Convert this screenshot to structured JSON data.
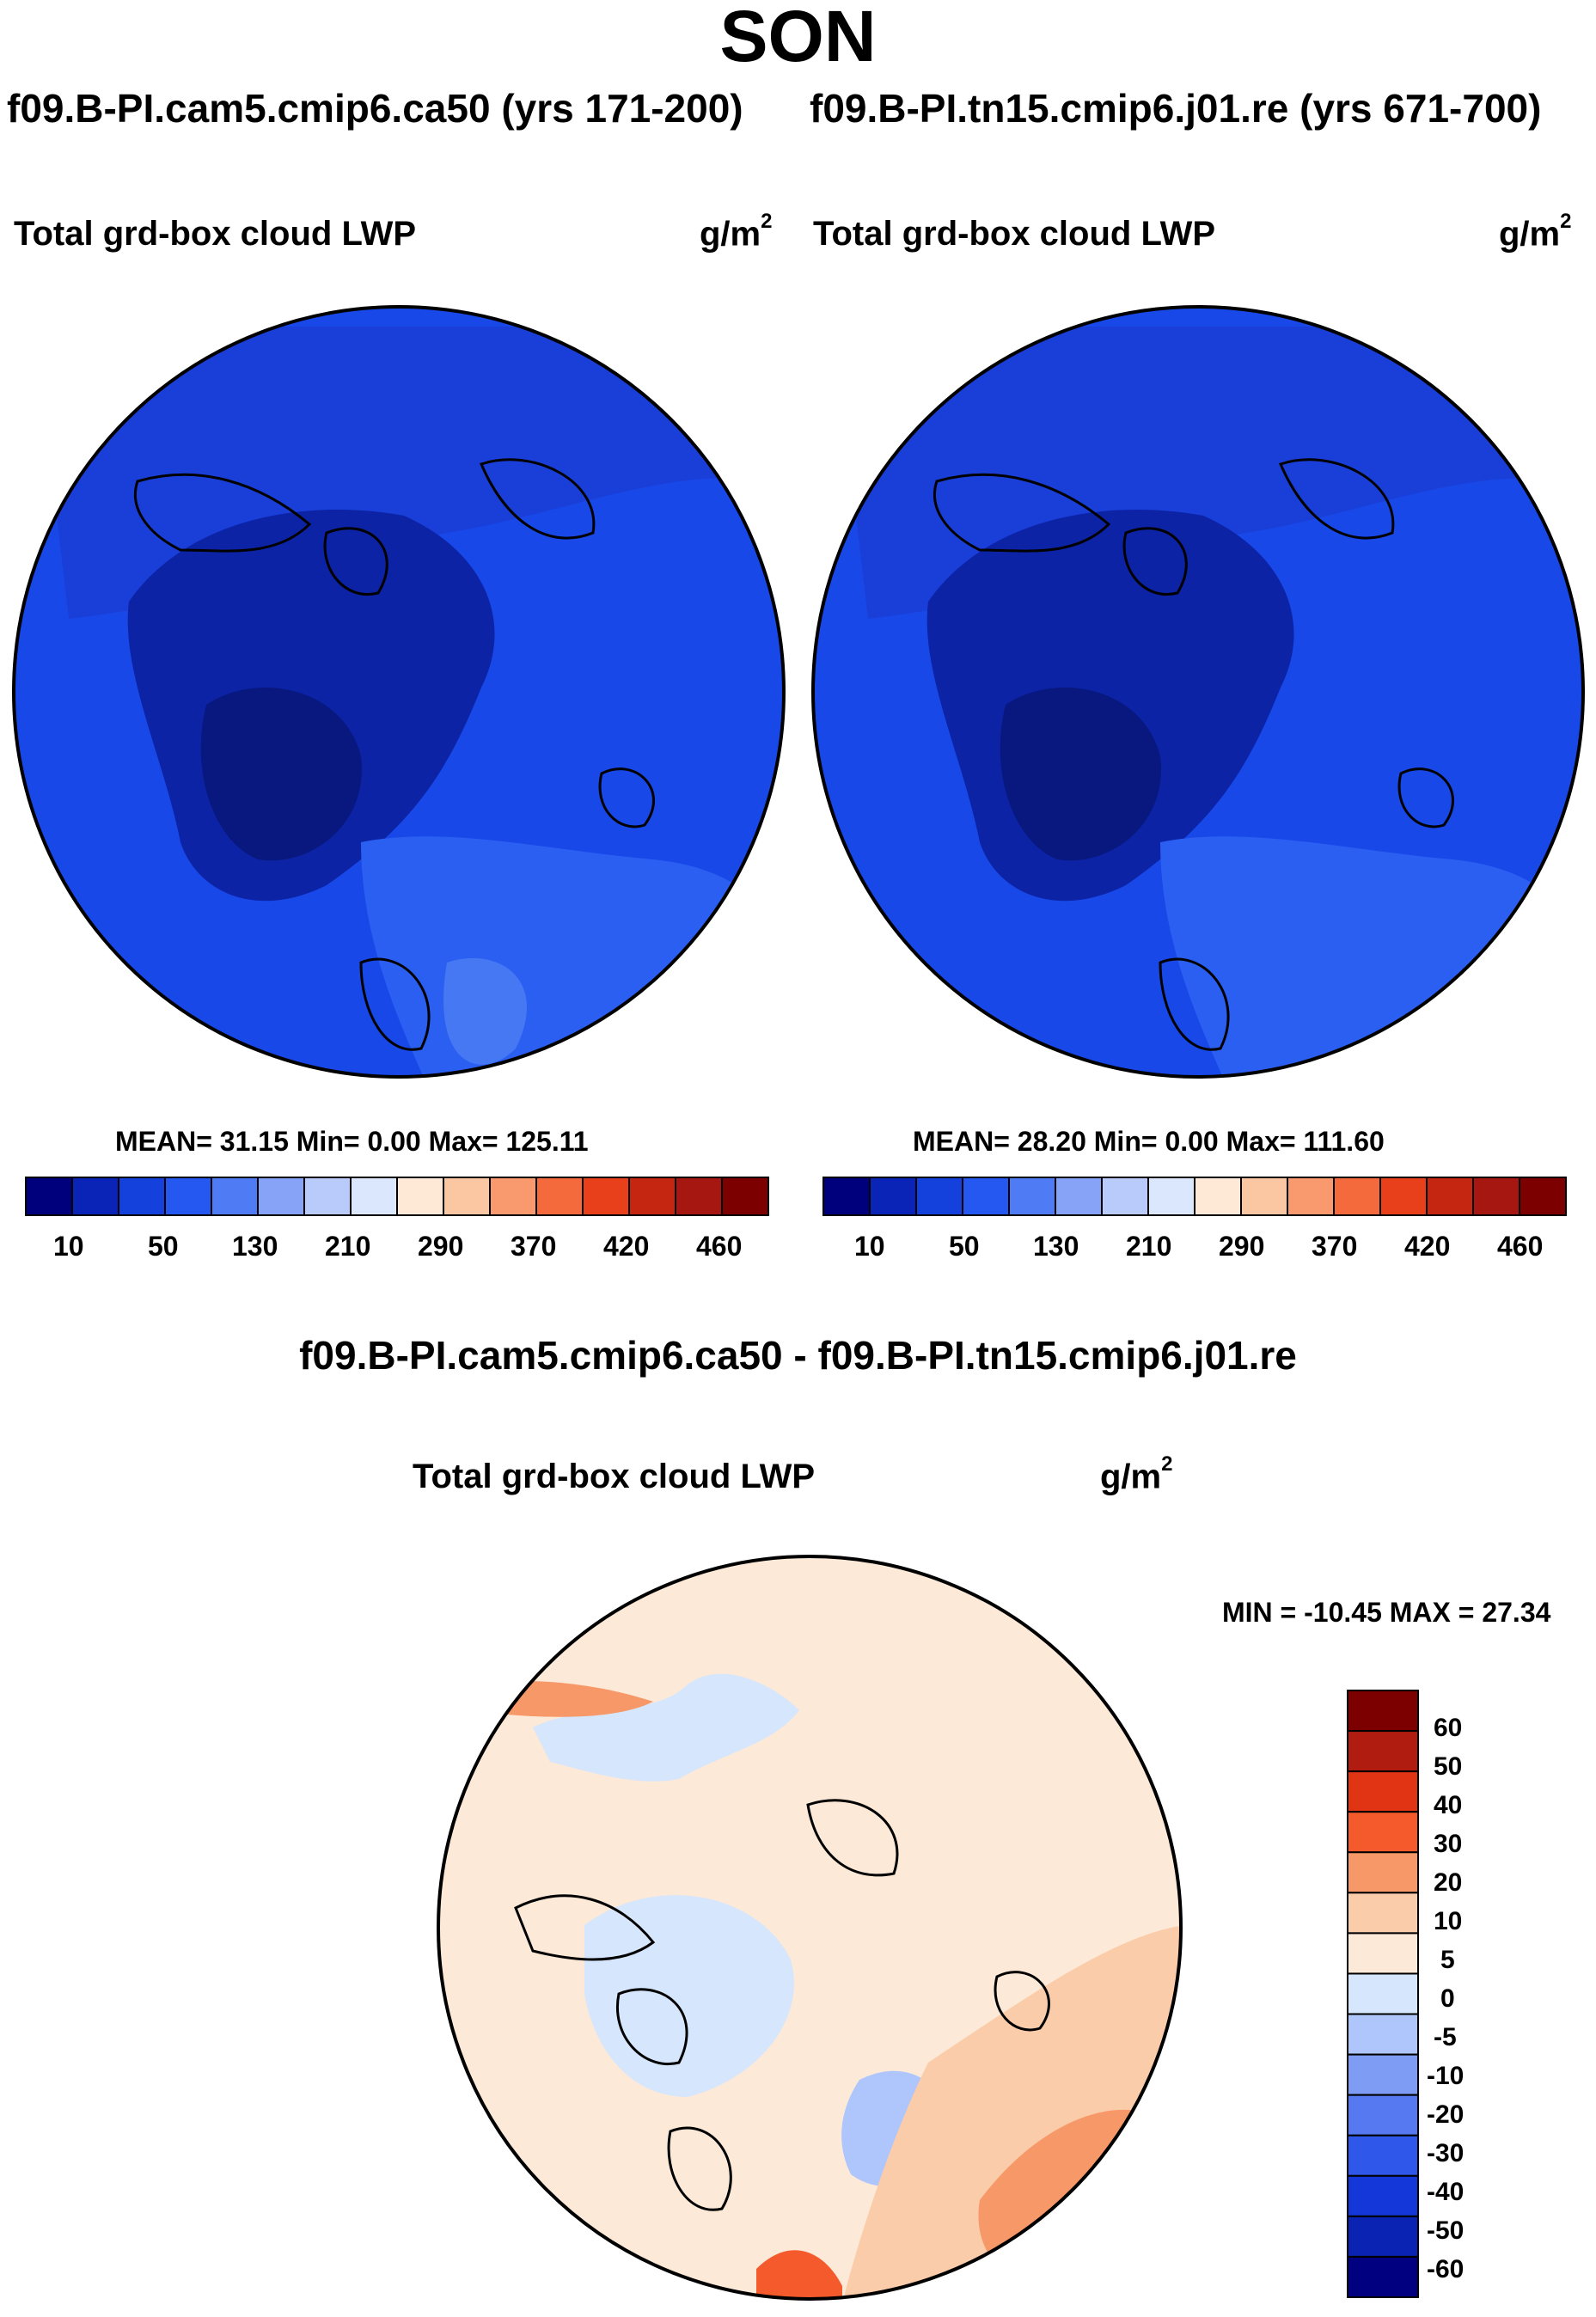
{
  "header": {
    "title": "SON",
    "case_left": "f09.B-PI.cam5.cmip6.ca50 (yrs 171-200)",
    "case_right": "f09.B-PI.tn15.cmip6.j01.re (yrs 671-700)"
  },
  "colors": {
    "abs_colorbar": [
      "#00007d",
      "#0a24b8",
      "#1440dc",
      "#2458f0",
      "#4f7cf5",
      "#86a3f8",
      "#b8cbfb",
      "#dbe7fd",
      "#fde9d5",
      "#fbc6a2",
      "#f99a6e",
      "#f56a3d",
      "#e8401a",
      "#c42612",
      "#a51710",
      "#7d0000"
    ],
    "diff_colorbar": [
      "#7d0000",
      "#b01c10",
      "#e03414",
      "#f45a2c",
      "#f79868",
      "#fbccaa",
      "#fde9d7",
      "#d6e6fd",
      "#aec6fb",
      "#7f9cf4",
      "#5679f1",
      "#2f57ea",
      "#1337d8",
      "#0a23b2",
      "#000080"
    ]
  },
  "chart_data": [
    {
      "type": "heatmap",
      "panel": "left",
      "title": "Total grd-box cloud LWP",
      "units_base": "g/m",
      "units_exp": "2",
      "stats": {
        "mean": "31.15",
        "min": "0.00",
        "max": "125.11"
      },
      "stats_text": "MEAN=  31.15  Min=   0.00  Max= 125.11",
      "colorbar_ticks": [
        "10",
        "50",
        "130",
        "210",
        "290",
        "370",
        "420",
        "460"
      ]
    },
    {
      "type": "heatmap",
      "panel": "right",
      "title": "Total grd-box cloud LWP",
      "units_base": "g/m",
      "units_exp": "2",
      "stats": {
        "mean": "28.20",
        "min": "0.00",
        "max": "111.60"
      },
      "stats_text": "MEAN=  28.20  Min=   0.00  Max= 111.60",
      "colorbar_ticks": [
        "10",
        "50",
        "130",
        "210",
        "290",
        "370",
        "420",
        "460"
      ]
    },
    {
      "type": "heatmap",
      "panel": "difference",
      "figure_title": "f09.B-PI.cam5.cmip6.ca50 - f09.B-PI.tn15.cmip6.j01.re",
      "title": "Total grd-box cloud LWP",
      "units_base": "g/m",
      "units_exp": "2",
      "stats": {
        "min": "-10.45",
        "max": "27.34"
      },
      "stats_text": "MIN = -10.45 MAX =  27.34",
      "colorbar_ticks": [
        "60",
        "50",
        "40",
        "30",
        "20",
        "10",
        "5",
        "0",
        "-5",
        "-10",
        "-20",
        "-30",
        "-40",
        "-50",
        "-60"
      ]
    }
  ]
}
